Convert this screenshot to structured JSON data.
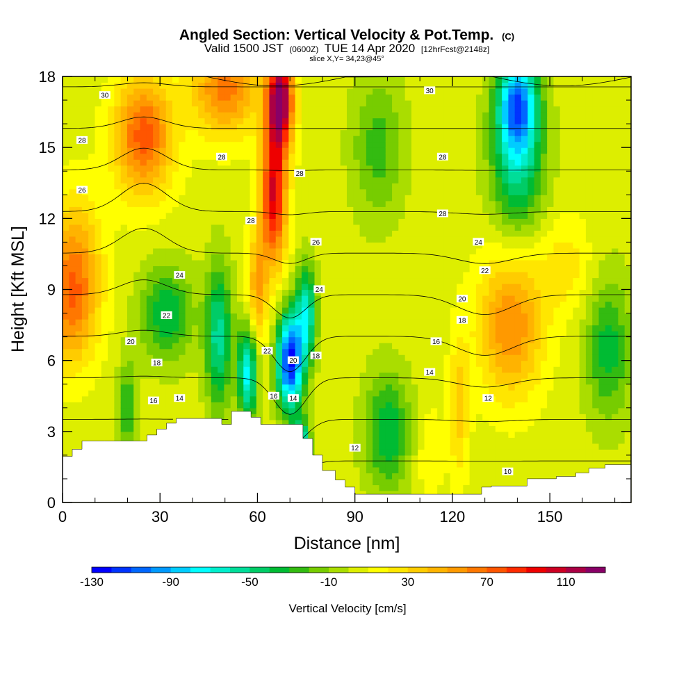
{
  "header": {
    "title": "Angled Section: Vertical Velocity & Pot.Temp.",
    "title_unit": "(C)",
    "valid_prefix": "Valid 1500 JST",
    "valid_zulu": "(0600Z)",
    "valid_date": "TUE 14 Apr 2020",
    "forecast": "[12hrFcst@2148z]",
    "slice": "slice X,Y= 34,23@45°"
  },
  "chart_data": {
    "type": "heatmap",
    "xlabel": "Distance [nm]",
    "ylabel": "Height [Kft MSL]",
    "xlim": [
      0,
      175
    ],
    "ylim": [
      0,
      18
    ],
    "x_ticks": [
      0,
      30,
      60,
      90,
      120,
      150
    ],
    "x_minor_step": 10,
    "y_ticks": [
      0,
      3,
      6,
      9,
      12,
      15,
      18
    ],
    "y_minor_step": 1,
    "colorbar": {
      "label": "Vertical Velocity [cm/s]",
      "min": -130,
      "max": 130,
      "step": 10,
      "tick_labels": [
        -130,
        -90,
        -50,
        -10,
        30,
        70,
        110
      ],
      "colors": [
        "#0000ff",
        "#0033ff",
        "#0066ff",
        "#0099ff",
        "#00ccff",
        "#00ffff",
        "#00eecc",
        "#00dd99",
        "#00cc66",
        "#00bb33",
        "#33bb11",
        "#77cc00",
        "#aadd00",
        "#ddee00",
        "#ffff00",
        "#ffe600",
        "#ffcc00",
        "#ffb300",
        "#ff9900",
        "#ff7700",
        "#ff5500",
        "#ff2a00",
        "#ee0000",
        "#cc0022",
        "#aa0044",
        "#880066"
      ]
    },
    "terrain": [
      [
        0,
        1.95
      ],
      [
        3,
        1.95
      ],
      [
        3,
        2.25
      ],
      [
        6,
        2.25
      ],
      [
        6,
        2.6
      ],
      [
        13,
        2.6
      ],
      [
        13,
        2.6
      ],
      [
        26,
        2.6
      ],
      [
        26,
        2.85
      ],
      [
        29,
        2.85
      ],
      [
        29,
        3.1
      ],
      [
        32,
        3.1
      ],
      [
        32,
        3.35
      ],
      [
        35,
        3.35
      ],
      [
        35,
        3.55
      ],
      [
        49,
        3.55
      ],
      [
        49,
        3.3
      ],
      [
        52,
        3.3
      ],
      [
        52,
        3.85
      ],
      [
        58,
        3.85
      ],
      [
        58,
        3.6
      ],
      [
        61,
        3.6
      ],
      [
        61,
        3.3
      ],
      [
        74,
        3.3
      ],
      [
        74,
        2.7
      ],
      [
        77,
        2.7
      ],
      [
        77,
        2.0
      ],
      [
        80,
        2.0
      ],
      [
        80,
        1.35
      ],
      [
        84,
        1.35
      ],
      [
        84,
        0.95
      ],
      [
        87,
        0.95
      ],
      [
        87,
        0.65
      ],
      [
        90,
        0.65
      ],
      [
        90,
        0.35
      ],
      [
        129,
        0.35
      ],
      [
        129,
        0.65
      ],
      [
        132,
        0.65
      ],
      [
        132,
        0.7
      ],
      [
        143,
        0.7
      ],
      [
        143,
        1.0
      ],
      [
        146,
        1.0
      ],
      [
        146,
        1.0
      ],
      [
        152,
        1.0
      ],
      [
        152,
        1.1
      ],
      [
        158,
        1.1
      ],
      [
        158,
        1.25
      ],
      [
        162,
        1.25
      ],
      [
        162,
        1.45
      ],
      [
        167,
        1.45
      ],
      [
        167,
        1.6
      ],
      [
        175,
        1.6
      ]
    ],
    "velocity_field": [
      {
        "x": 4,
        "z": 10,
        "v": 45,
        "sx": 8,
        "sz": 3
      },
      {
        "x": 2,
        "z": 8,
        "v": 35,
        "sx": 8,
        "sz": 2.5
      },
      {
        "x": 25,
        "z": 15.5,
        "v": 70,
        "sx": 9,
        "sz": 2.5
      },
      {
        "x": 50,
        "z": 17.5,
        "v": 60,
        "sx": 10,
        "sz": 2
      },
      {
        "x": 67,
        "z": 17,
        "v": 120,
        "sx": 4,
        "sz": 2
      },
      {
        "x": 65,
        "z": 13,
        "v": 95,
        "sx": 4,
        "sz": 3
      },
      {
        "x": 60,
        "z": 9,
        "v": 45,
        "sx": 3,
        "sz": 2.5
      },
      {
        "x": 48,
        "z": 7,
        "v": -60,
        "sx": 4,
        "sz": 3
      },
      {
        "x": 32,
        "z": 8,
        "v": -45,
        "sx": 8,
        "sz": 2
      },
      {
        "x": 57,
        "z": 5.5,
        "v": -80,
        "sx": 3,
        "sz": 2
      },
      {
        "x": 70,
        "z": 6,
        "v": -130,
        "sx": 4,
        "sz": 2
      },
      {
        "x": 75,
        "z": 8,
        "v": -70,
        "sx": 3,
        "sz": 2
      },
      {
        "x": 73,
        "z": 2.5,
        "v": -80,
        "sx": 3,
        "sz": 1
      },
      {
        "x": 100,
        "z": 3,
        "v": -45,
        "sx": 7,
        "sz": 2.5
      },
      {
        "x": 97,
        "z": 15,
        "v": -30,
        "sx": 8,
        "sz": 3
      },
      {
        "x": 140,
        "z": 17,
        "v": -90,
        "sx": 6,
        "sz": 2
      },
      {
        "x": 140,
        "z": 14.5,
        "v": -60,
        "sx": 8,
        "sz": 3
      },
      {
        "x": 138,
        "z": 7.5,
        "v": 55,
        "sx": 10,
        "sz": 3
      },
      {
        "x": 122,
        "z": 4,
        "v": 30,
        "sx": 3,
        "sz": 3
      },
      {
        "x": 168,
        "z": 6.5,
        "v": -40,
        "sx": 7,
        "sz": 3
      },
      {
        "x": 113,
        "z": 2,
        "v": 15,
        "sx": 4,
        "sz": 2
      },
      {
        "x": 20,
        "z": 4,
        "v": -35,
        "sx": 3,
        "sz": 2
      },
      {
        "x": 155,
        "z": 10,
        "v": 20,
        "sx": 8,
        "sz": 2
      }
    ],
    "contour_levels": [
      10,
      12,
      14,
      16,
      18,
      20,
      22,
      24,
      26,
      28,
      30
    ],
    "contour_labels": [
      {
        "text": "30",
        "x": 13,
        "z": 17.2
      },
      {
        "text": "30",
        "x": 113,
        "z": 17.4
      },
      {
        "text": "28",
        "x": 6,
        "z": 15.3
      },
      {
        "text": "28",
        "x": 49,
        "z": 14.6
      },
      {
        "text": "28",
        "x": 58,
        "z": 11.9
      },
      {
        "text": "28",
        "x": 73,
        "z": 13.9
      },
      {
        "text": "28",
        "x": 117,
        "z": 14.6
      },
      {
        "text": "28",
        "x": 117,
        "z": 12.2
      },
      {
        "text": "26",
        "x": 6,
        "z": 13.2
      },
      {
        "text": "26",
        "x": 78,
        "z": 11.0
      },
      {
        "text": "24",
        "x": 36,
        "z": 9.6
      },
      {
        "text": "24",
        "x": 79,
        "z": 9.0
      },
      {
        "text": "24",
        "x": 128,
        "z": 11.0
      },
      {
        "text": "22",
        "x": 32,
        "z": 7.9
      },
      {
        "text": "22",
        "x": 63,
        "z": 6.4
      },
      {
        "text": "22",
        "x": 130,
        "z": 9.8
      },
      {
        "text": "20",
        "x": 21,
        "z": 6.8
      },
      {
        "text": "20",
        "x": 71,
        "z": 6.0
      },
      {
        "text": "20",
        "x": 123,
        "z": 8.6
      },
      {
        "text": "18",
        "x": 29,
        "z": 5.9
      },
      {
        "text": "18",
        "x": 78,
        "z": 6.2
      },
      {
        "text": "18",
        "x": 123,
        "z": 7.7
      },
      {
        "text": "16",
        "x": 28,
        "z": 4.3
      },
      {
        "text": "16",
        "x": 65,
        "z": 4.5
      },
      {
        "text": "16",
        "x": 115,
        "z": 6.8
      },
      {
        "text": "14",
        "x": 36,
        "z": 4.4
      },
      {
        "text": "14",
        "x": 71,
        "z": 4.4
      },
      {
        "text": "14",
        "x": 113,
        "z": 5.5
      },
      {
        "text": "12",
        "x": 90,
        "z": 2.3
      },
      {
        "text": "12",
        "x": 131,
        "z": 4.4
      },
      {
        "text": "10",
        "x": 137,
        "z": 1.3
      }
    ]
  }
}
